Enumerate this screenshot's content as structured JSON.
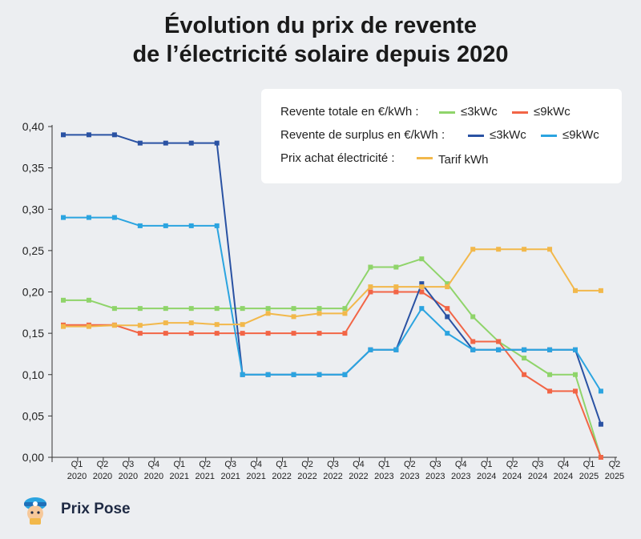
{
  "title": {
    "line1": "Évolution du prix de revente",
    "line2": "de l’électricité solaire depuis 2020"
  },
  "legend": {
    "row1_label": "Revente totale en €/kWh :",
    "row2_label": "Revente de surplus en €/kWh :",
    "row3_label": "Prix achat électricité :",
    "items": {
      "total_3": "≤3kWc",
      "total_9": "≤9kWc",
      "surplus_3": "≤3kWc",
      "surplus_9": "≤9kWc",
      "tarif": "Tarif kWh"
    }
  },
  "brand": {
    "name": "Prix Pose",
    "icon": "mascot-icon"
  },
  "colors": {
    "total_3": "#8fd46a",
    "total_9": "#f26546",
    "surplus_3": "#2a52a3",
    "surplus_9": "#2ba4e0",
    "tarif": "#f2b84b"
  },
  "chart_data": {
    "type": "line",
    "title": "Évolution du prix de revente de l’électricité solaire depuis 2020",
    "xlabel": "",
    "ylabel": "",
    "ylim": [
      0,
      0.4
    ],
    "yticks": [
      "0,00",
      "0,05",
      "0,10",
      "0,15",
      "0,20",
      "0,25",
      "0,30",
      "0,35",
      "0,40"
    ],
    "categories": [
      [
        "Q1",
        "2020"
      ],
      [
        "Q2",
        "2020"
      ],
      [
        "Q3",
        "2020"
      ],
      [
        "Q4",
        "2020"
      ],
      [
        "Q1",
        "2021"
      ],
      [
        "Q2",
        "2021"
      ],
      [
        "Q3",
        "2021"
      ],
      [
        "Q4",
        "2021"
      ],
      [
        "Q1",
        "2022"
      ],
      [
        "Q2",
        "2022"
      ],
      [
        "Q3",
        "2022"
      ],
      [
        "Q4",
        "2022"
      ],
      [
        "Q1",
        "2023"
      ],
      [
        "Q2",
        "2023"
      ],
      [
        "Q3",
        "2023"
      ],
      [
        "Q4",
        "2023"
      ],
      [
        "Q1",
        "2024"
      ],
      [
        "Q2",
        "2024"
      ],
      [
        "Q3",
        "2024"
      ],
      [
        "Q4",
        "2024"
      ],
      [
        "Q1",
        "2025"
      ],
      [
        "Q2",
        "2025"
      ]
    ],
    "series": [
      {
        "key": "total_3",
        "name": "Revente totale ≤3kWc",
        "values": [
          0.19,
          0.19,
          0.18,
          0.18,
          0.18,
          0.18,
          0.18,
          0.18,
          0.18,
          0.18,
          0.18,
          0.18,
          0.23,
          0.23,
          0.24,
          0.21,
          0.17,
          0.14,
          0.12,
          0.1,
          0.1,
          0.0
        ]
      },
      {
        "key": "total_9",
        "name": "Revente totale ≤9kWc",
        "values": [
          0.16,
          0.16,
          0.16,
          0.15,
          0.15,
          0.15,
          0.15,
          0.15,
          0.15,
          0.15,
          0.15,
          0.15,
          0.2,
          0.2,
          0.2,
          0.18,
          0.14,
          0.14,
          0.1,
          0.08,
          0.08,
          0.0
        ]
      },
      {
        "key": "surplus_3",
        "name": "Revente de surplus ≤3kWc",
        "values": [
          0.39,
          0.39,
          0.39,
          0.38,
          0.38,
          0.38,
          0.38,
          0.1,
          0.1,
          0.1,
          0.1,
          0.1,
          0.13,
          0.13,
          0.21,
          0.17,
          0.13,
          0.13,
          0.13,
          0.13,
          0.13,
          0.04
        ]
      },
      {
        "key": "surplus_9",
        "name": "Revente de surplus ≤9kWc",
        "values": [
          0.29,
          0.29,
          0.29,
          0.28,
          0.28,
          0.28,
          0.28,
          0.1,
          0.1,
          0.1,
          0.1,
          0.1,
          0.13,
          0.13,
          0.18,
          0.15,
          0.13,
          0.13,
          0.13,
          0.13,
          0.13,
          0.08
        ]
      },
      {
        "key": "tarif",
        "name": "Tarif kWh",
        "values": [
          0.1582,
          0.1582,
          0.1596,
          0.1596,
          0.1626,
          0.1626,
          0.1606,
          0.1606,
          0.174,
          0.1701,
          0.174,
          0.174,
          0.2062,
          0.2062,
          0.2062,
          0.2062,
          0.2516,
          0.2516,
          0.2516,
          0.2516,
          0.2016,
          0.2016
        ]
      }
    ]
  }
}
